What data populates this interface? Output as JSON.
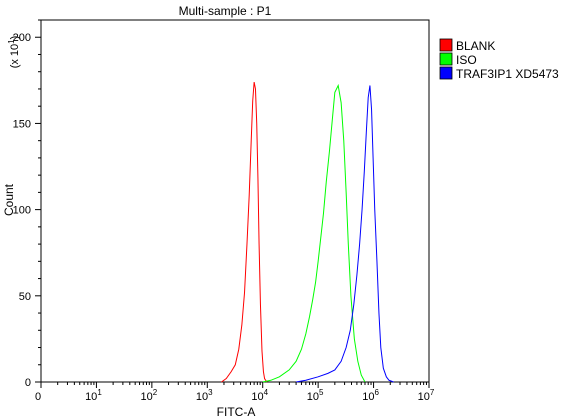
{
  "chart_data": {
    "type": "line",
    "title": "Multi-sample : P1",
    "xlabel": "FITC-A",
    "ylabel": "Count",
    "y_scale_note": "(x 10",
    "y_scale_exp": "1",
    "y_scale_close": ")",
    "xscale": "log",
    "xlim": [
      1,
      10000000
    ],
    "ylim": [
      0,
      210
    ],
    "x_ticks": [
      {
        "value": 1,
        "base": "0",
        "exp": ""
      },
      {
        "value": 10,
        "base": "10",
        "exp": "1"
      },
      {
        "value": 100,
        "base": "10",
        "exp": "2"
      },
      {
        "value": 1000,
        "base": "10",
        "exp": "3"
      },
      {
        "value": 10000,
        "base": "10",
        "exp": "4"
      },
      {
        "value": 100000,
        "base": "10",
        "exp": "5"
      },
      {
        "value": 1000000,
        "base": "10",
        "exp": "6"
      },
      {
        "value": 10000000,
        "base": "10",
        "exp": "7"
      }
    ],
    "y_ticks": [
      0,
      50,
      100,
      150,
      200
    ],
    "legend_position": "top-right",
    "series": [
      {
        "name": "BLANK",
        "color": "#ff0000",
        "x": [
          1800,
          2200,
          2700,
          3200,
          3700,
          4200,
          4700,
          5200,
          5700,
          6200,
          6600,
          7000,
          7400,
          7800,
          8200,
          8600,
          9100,
          9700,
          10300,
          10800,
          11300,
          12000
        ],
        "y": [
          0,
          2,
          6,
          10,
          19,
          33,
          52,
          80,
          108,
          140,
          163,
          174,
          170,
          150,
          118,
          80,
          45,
          18,
          6,
          2,
          1,
          0
        ]
      },
      {
        "name": "ISO",
        "color": "#00ff00",
        "x": [
          10000,
          14000,
          20000,
          30000,
          40000,
          50000,
          60000,
          70000,
          80000,
          90000,
          100000,
          110000,
          125000,
          140000,
          160000,
          180000,
          200000,
          230000,
          260000,
          290000,
          320000,
          350000,
          390000,
          450000,
          520000,
          600000,
          700000
        ],
        "y": [
          0,
          1,
          3,
          7,
          12,
          19,
          28,
          38,
          48,
          58,
          70,
          82,
          98,
          116,
          134,
          152,
          168,
          172,
          162,
          140,
          110,
          80,
          50,
          25,
          12,
          4,
          0
        ]
      },
      {
        "name": "TRAF3IP1 XD5473",
        "color": "#0000ff",
        "x": [
          40000,
          60000,
          100000,
          150000,
          200000,
          260000,
          320000,
          380000,
          440000,
          500000,
          560000,
          620000,
          680000,
          740000,
          800000,
          860000,
          920000,
          980000,
          1050000,
          1150000,
          1250000,
          1350000,
          1500000,
          1700000,
          1900000,
          2300000
        ],
        "y": [
          0,
          1,
          3,
          5,
          7,
          12,
          20,
          30,
          45,
          62,
          80,
          100,
          122,
          145,
          165,
          172,
          158,
          130,
          100,
          70,
          40,
          20,
          8,
          3,
          1,
          0
        ]
      }
    ]
  }
}
